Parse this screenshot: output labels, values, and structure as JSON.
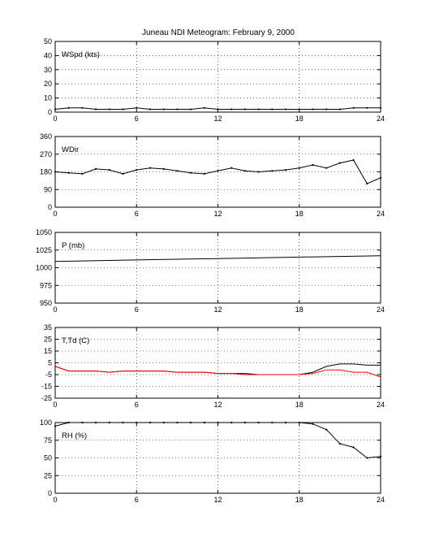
{
  "title": "Juneau NDI Meteogram:  February  9, 2000",
  "chart_data": [
    {
      "type": "scatter",
      "label": "WSpd (kts)",
      "x_range": [
        0,
        24
      ],
      "x_ticks": [
        0,
        6,
        12,
        18,
        24
      ],
      "ylim": [
        0,
        50
      ],
      "y_ticks": [
        0,
        10,
        20,
        30,
        40,
        50
      ],
      "grid": true,
      "series": [
        {
          "color": "#000000",
          "x": [
            0,
            1,
            2,
            3,
            4,
            5,
            6,
            7,
            8,
            9,
            10,
            11,
            12,
            13,
            14,
            15,
            16,
            17,
            18,
            19,
            20,
            21,
            22,
            23,
            24
          ],
          "values": [
            2,
            3,
            3,
            2,
            2,
            2,
            3,
            2,
            2,
            2,
            2,
            3,
            2,
            2,
            2,
            2,
            2,
            2,
            2,
            2,
            2,
            2,
            3,
            3,
            3
          ]
        }
      ]
    },
    {
      "type": "scatter",
      "label": "WDir",
      "x_range": [
        0,
        24
      ],
      "x_ticks": [
        0,
        6,
        12,
        18,
        24
      ],
      "ylim": [
        0,
        360
      ],
      "y_ticks": [
        0,
        90,
        180,
        270,
        360
      ],
      "grid": true,
      "series": [
        {
          "color": "#000000",
          "x": [
            0,
            1,
            2,
            3,
            4,
            5,
            6,
            7,
            8,
            9,
            10,
            11,
            12,
            13,
            14,
            15,
            16,
            17,
            18,
            19,
            20,
            21,
            22,
            23,
            24
          ],
          "values": [
            180,
            175,
            170,
            195,
            190,
            170,
            190,
            200,
            195,
            185,
            175,
            170,
            185,
            200,
            185,
            180,
            185,
            190,
            200,
            215,
            200,
            225,
            240,
            120,
            150
          ]
        }
      ]
    },
    {
      "type": "line",
      "label": "P (mb)",
      "x_range": [
        0,
        24
      ],
      "x_ticks": [
        0,
        6,
        12,
        18,
        24
      ],
      "ylim": [
        950,
        1050
      ],
      "y_ticks": [
        950,
        975,
        1000,
        1025,
        1050
      ],
      "grid": true,
      "series": [
        {
          "color": "#000000",
          "x": [
            0,
            6,
            12,
            18,
            24
          ],
          "values": [
            1009,
            1011,
            1013,
            1015,
            1017
          ]
        }
      ]
    },
    {
      "type": "line",
      "label": "T,Td (C)",
      "x_range": [
        0,
        24
      ],
      "x_ticks": [
        0,
        6,
        12,
        18,
        24
      ],
      "ylim": [
        -25,
        35
      ],
      "y_ticks": [
        -25,
        -15,
        -5,
        5,
        15,
        25,
        35
      ],
      "grid": true,
      "series": [
        {
          "color": "#000000",
          "x": [
            0,
            1,
            2,
            3,
            4,
            5,
            6,
            7,
            8,
            9,
            10,
            11,
            12,
            13,
            14,
            15,
            16,
            17,
            18,
            19,
            20,
            21,
            22,
            23,
            24
          ],
          "values": [
            2,
            -2,
            -2,
            -2,
            -3,
            -2,
            -2,
            -2,
            -2,
            -3,
            -3,
            -3,
            -4,
            -4,
            -4,
            -5,
            -5,
            -5,
            -5,
            -3,
            2,
            4,
            4,
            3,
            3
          ]
        },
        {
          "color": "#ff0000",
          "x": [
            0,
            1,
            2,
            3,
            4,
            5,
            6,
            7,
            8,
            9,
            10,
            11,
            12,
            13,
            14,
            15,
            16,
            17,
            18,
            19,
            20,
            21,
            22,
            23,
            24
          ],
          "values": [
            2,
            -2,
            -2,
            -2,
            -3,
            -2,
            -2,
            -2,
            -2,
            -3,
            -3,
            -3,
            -4,
            -4,
            -5,
            -5,
            -5,
            -5,
            -5,
            -4,
            -1,
            -1,
            -3,
            -3,
            -7
          ]
        }
      ]
    },
    {
      "type": "scatter",
      "label": "RH (%)",
      "x_range": [
        0,
        24
      ],
      "x_ticks": [
        0,
        6,
        12,
        18,
        24
      ],
      "ylim": [
        0,
        100
      ],
      "y_ticks": [
        0,
        25,
        50,
        75,
        100
      ],
      "grid": true,
      "series": [
        {
          "color": "#000000",
          "x": [
            0,
            1,
            2,
            3,
            4,
            5,
            6,
            7,
            8,
            9,
            10,
            11,
            12,
            13,
            14,
            15,
            16,
            17,
            18,
            19,
            20,
            21,
            22,
            23,
            24
          ],
          "values": [
            95,
            100,
            100,
            100,
            100,
            100,
            100,
            100,
            100,
            100,
            100,
            100,
            100,
            100,
            100,
            100,
            100,
            100,
            100,
            98,
            90,
            70,
            65,
            50,
            52
          ]
        }
      ]
    }
  ]
}
